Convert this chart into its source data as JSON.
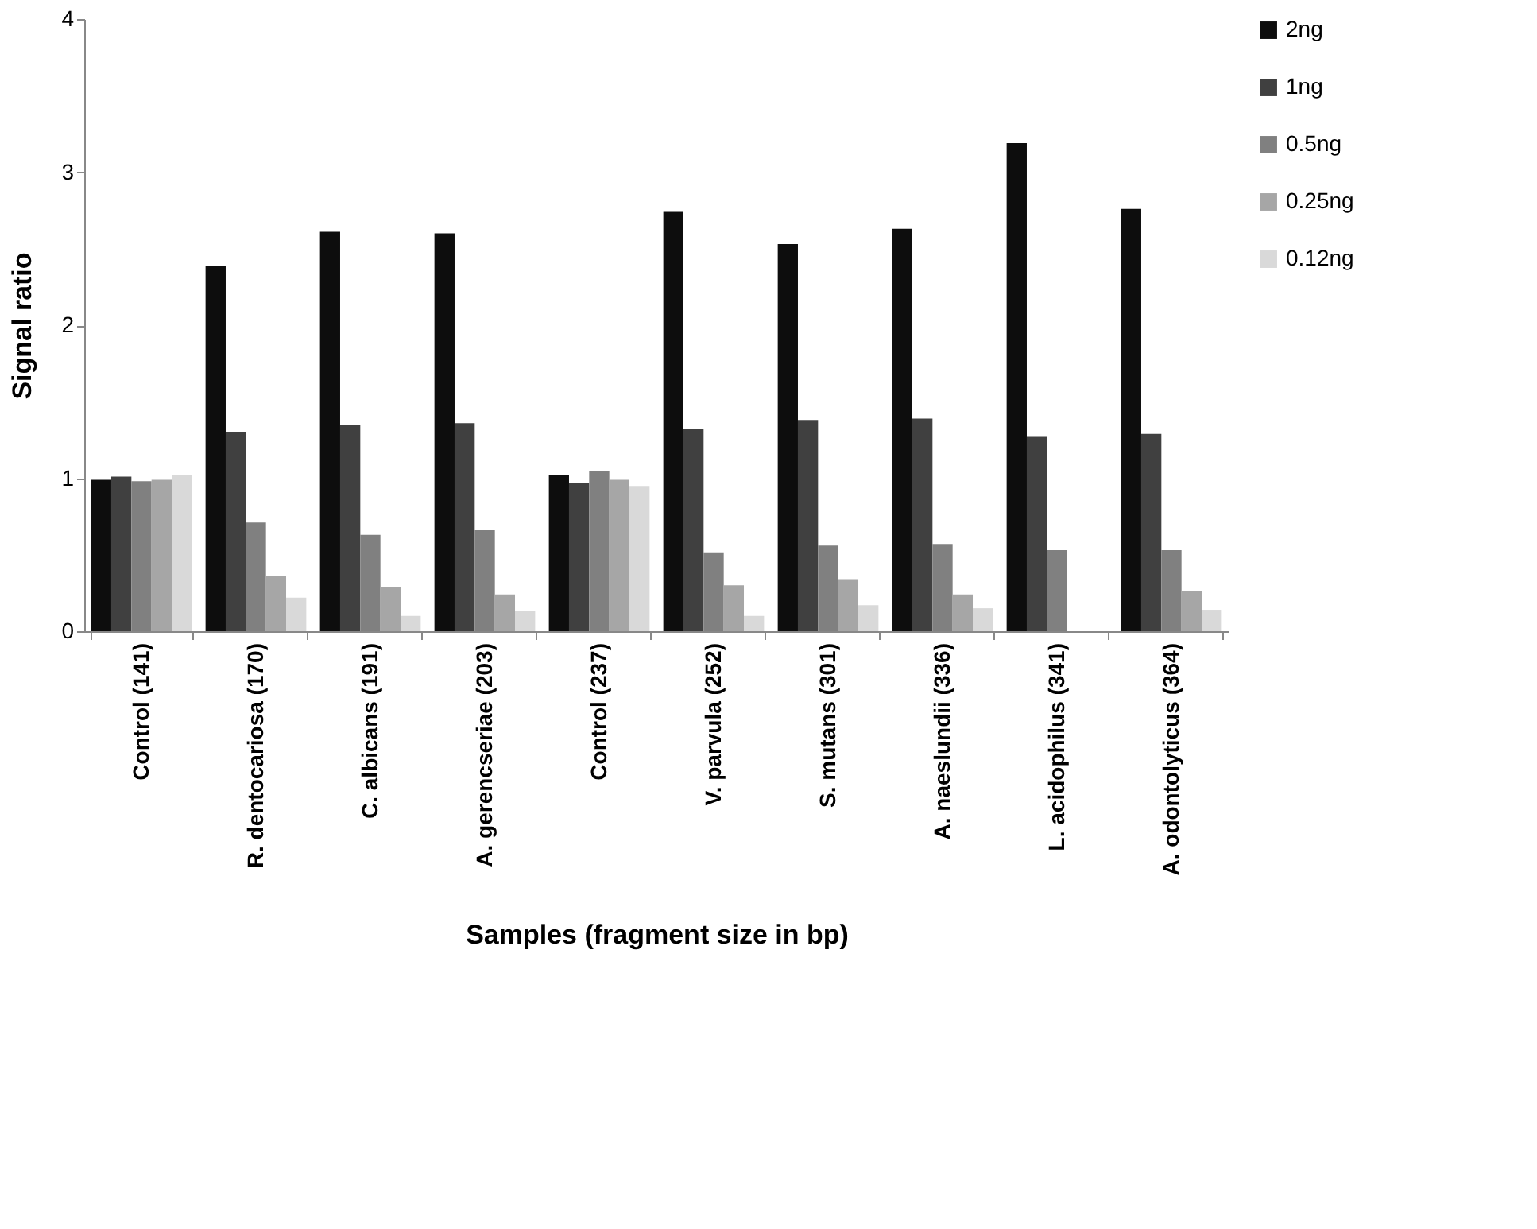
{
  "chart_data": {
    "type": "bar",
    "xlabel": "Samples (fragment size in bp)",
    "ylabel": "Signal ratio",
    "categories": [
      "Control (141)",
      "R. dentocariosa (170)",
      "C. albicans (191)",
      "A. gerencseriae (203)",
      "Control (237)",
      "V. parvula (252)",
      "S. mutans (301)",
      "A. naeslundii (336)",
      "L. acidophilus (341)",
      "A. odontolyticus (364)"
    ],
    "series": [
      {
        "name": "2ng",
        "color": "#0d0d0d",
        "values": [
          0.99,
          2.39,
          2.61,
          2.6,
          1.02,
          2.74,
          2.53,
          2.63,
          3.19,
          2.76
        ]
      },
      {
        "name": "1ng",
        "color": "#404040",
        "values": [
          1.01,
          1.3,
          1.35,
          1.36,
          0.97,
          1.32,
          1.38,
          1.39,
          1.27,
          1.29
        ]
      },
      {
        "name": "0.5ng",
        "color": "#808080",
        "values": [
          0.98,
          0.71,
          0.63,
          0.66,
          1.05,
          0.51,
          0.56,
          0.57,
          0.53,
          0.53
        ]
      },
      {
        "name": "0.25ng",
        "color": "#a6a6a6",
        "values": [
          0.99,
          0.36,
          0.29,
          0.24,
          0.99,
          0.3,
          0.34,
          0.24,
          null,
          0.26
        ]
      },
      {
        "name": "0.12ng",
        "color": "#d9d9d9",
        "values": [
          1.02,
          0.22,
          0.1,
          0.13,
          0.95,
          0.1,
          0.17,
          0.15,
          null,
          0.14
        ]
      }
    ],
    "ylim": [
      0,
      4
    ],
    "yticks": [
      0,
      1,
      2,
      3,
      4
    ],
    "grid": false,
    "legend": "right"
  }
}
